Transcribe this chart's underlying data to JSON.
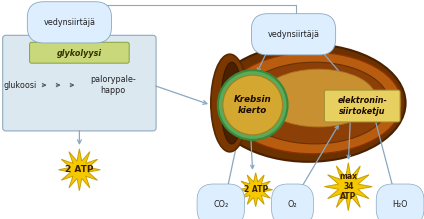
{
  "bg_color": "#ffffff",
  "left_box_bg": "#dce8f0",
  "glycolysis_box_bg": "#c8d87a",
  "krebs_circle_color": "#5ab85a",
  "krebs_fill": "#d4a830",
  "electron_box_bg": "#e8d060",
  "arrow_color": "#8aa8c0",
  "star_color": "#f5c800",
  "star_edge": "#c8a000",
  "text_dark": "#222222",
  "left_vedyn_label": "vedynsiirtäjä",
  "right_vedyn_label": "vedynsiirtäjä",
  "glycolysis_label": "glykolyysi",
  "glukoosi_label": "glukoosi",
  "palorypale_label": "palorypale-\nhappo",
  "krebs_label": "Krebsin\nkierto",
  "electron_label": "elektronin-\nsiirtoketju",
  "atp_left": "2 ATP",
  "co2_label": "CO₂",
  "atp_mid": "2 ATP",
  "o2_label": "O₂",
  "atp_max": "max\n34\nATP",
  "h2o_label": "H₂O",
  "fs_main": 5.8,
  "fs_small": 5.2,
  "fs_atp": 6.5,
  "fs_atp_small": 5.5
}
